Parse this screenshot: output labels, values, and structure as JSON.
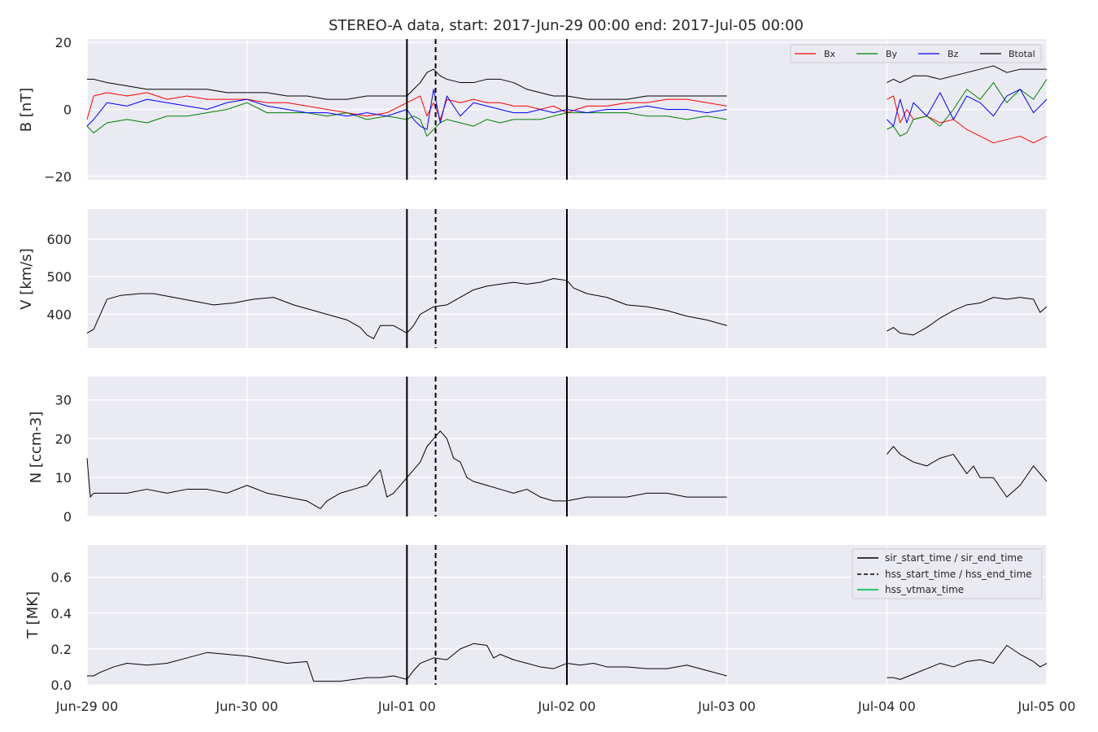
{
  "title": "STEREO-A data, start: 2017-Jun-29 00:00  end: 2017-Jul-05 00:00",
  "x_ticks": [
    "Jun-29 00",
    "Jun-30 00",
    "Jul-01 00",
    "Jul-02 00",
    "Jul-03 00",
    "Jul-04 00",
    "Jul-05 00"
  ],
  "colors": {
    "panel_bg": "#EAEAF2",
    "grid": "#FFFFFF",
    "Bx": "#FF0000",
    "By": "#008000",
    "Bz": "#0000FF",
    "Btotal": "#000000",
    "hss_vtmax": "#2ECC71"
  },
  "legend_b": [
    "Bx",
    "By",
    "Bz",
    "Btotal"
  ],
  "legend_events": [
    "sir_start_time / sir_end_time",
    "hss_start_time / hss_end_time",
    "hss_vtmax_time"
  ],
  "chart_data": {
    "type": "line",
    "title": "STEREO-A data, start: 2017-Jun-29 00:00  end: 2017-Jul-05 00:00",
    "x_unit": "hours since 2017-Jun-29 00:00",
    "x_range": [
      0,
      144
    ],
    "data_gap": [
      96,
      120
    ],
    "event_markers": {
      "sir_start_time": 48,
      "hss_start_time": 52.3,
      "sir_end_time": 72
    },
    "panels": [
      {
        "id": "B",
        "ylabel": "B [nT]",
        "ylim": [
          -21,
          21
        ],
        "yticks": [
          -20,
          0,
          20
        ],
        "ytick_labels": [
          "−20",
          "0",
          "20"
        ],
        "legend": "top-right",
        "series": [
          {
            "name": "Bx",
            "color": "#FF0000",
            "x": [
              0,
              1,
              3,
              6,
              9,
              12,
              15,
              18,
              21,
              24,
              27,
              30,
              33,
              36,
              39,
              42,
              45,
              48,
              49,
              50,
              51,
              52,
              53,
              54,
              56,
              58,
              60,
              62,
              64,
              66,
              68,
              70,
              72,
              75,
              78,
              81,
              84,
              87,
              90,
              93,
              96,
              120,
              121,
              122,
              123,
              124,
              126,
              128,
              130,
              132,
              134,
              136,
              138,
              140,
              142,
              144
            ],
            "y": [
              -3,
              4,
              5,
              4,
              5,
              3,
              4,
              3,
              3,
              3,
              2,
              2,
              1,
              0,
              -1,
              -2,
              -1,
              2,
              3,
              4,
              -2,
              2,
              -3,
              3,
              2,
              3,
              2,
              2,
              1,
              1,
              0,
              1,
              -1,
              1,
              1,
              2,
              2,
              3,
              3,
              2,
              1,
              3,
              4,
              -4,
              0,
              -3,
              -2,
              -4,
              -3,
              -6,
              -8,
              -10,
              -9,
              -8,
              -10,
              -8
            ]
          },
          {
            "name": "By",
            "color": "#008000",
            "x": [
              0,
              1,
              3,
              6,
              9,
              12,
              15,
              18,
              21,
              24,
              27,
              30,
              33,
              36,
              39,
              42,
              45,
              48,
              49,
              50,
              51,
              52,
              53,
              54,
              56,
              58,
              60,
              62,
              64,
              66,
              68,
              70,
              72,
              75,
              78,
              81,
              84,
              87,
              90,
              93,
              96,
              120,
              121,
              122,
              123,
              124,
              126,
              128,
              130,
              132,
              134,
              136,
              138,
              140,
              142,
              144
            ],
            "y": [
              -5,
              -7,
              -4,
              -3,
              -4,
              -2,
              -2,
              -1,
              0,
              2,
              -1,
              -1,
              -1,
              -2,
              -1,
              -3,
              -2,
              -3,
              -2,
              -3,
              -8,
              -6,
              -4,
              -3,
              -4,
              -5,
              -3,
              -4,
              -3,
              -3,
              -3,
              -2,
              -1,
              -1,
              -1,
              -1,
              -2,
              -2,
              -3,
              -2,
              -3,
              -6,
              -5,
              -8,
              -7,
              -3,
              -2,
              -5,
              0,
              6,
              3,
              8,
              2,
              6,
              3,
              9
            ]
          },
          {
            "name": "Bz",
            "color": "#0000FF",
            "x": [
              0,
              1,
              3,
              6,
              9,
              12,
              15,
              18,
              21,
              24,
              27,
              30,
              33,
              36,
              39,
              42,
              45,
              48,
              49,
              50,
              51,
              52,
              53,
              54,
              56,
              58,
              60,
              62,
              64,
              66,
              68,
              70,
              72,
              75,
              78,
              81,
              84,
              87,
              90,
              93,
              96,
              120,
              121,
              122,
              123,
              124,
              126,
              128,
              130,
              132,
              134,
              136,
              138,
              140,
              142,
              144
            ],
            "y": [
              -5,
              -3,
              2,
              1,
              3,
              2,
              1,
              0,
              2,
              3,
              1,
              0,
              -1,
              -1,
              -2,
              -1,
              -2,
              0,
              -3,
              -5,
              -6,
              6,
              -4,
              4,
              -2,
              2,
              1,
              0,
              -1,
              -1,
              0,
              -1,
              0,
              -1,
              0,
              0,
              1,
              0,
              0,
              -1,
              0,
              -3,
              -5,
              3,
              -4,
              2,
              -2,
              5,
              -3,
              4,
              2,
              -2,
              4,
              6,
              -1,
              3
            ]
          },
          {
            "name": "Btotal",
            "color": "#000000",
            "x": [
              0,
              1,
              3,
              6,
              9,
              12,
              15,
              18,
              21,
              24,
              27,
              30,
              33,
              36,
              39,
              42,
              45,
              48,
              49,
              50,
              51,
              52,
              53,
              54,
              56,
              58,
              60,
              62,
              64,
              66,
              68,
              70,
              72,
              75,
              78,
              81,
              84,
              87,
              90,
              93,
              96,
              120,
              121,
              122,
              123,
              124,
              126,
              128,
              130,
              132,
              134,
              136,
              138,
              140,
              142,
              144
            ],
            "y": [
              9,
              9,
              8,
              7,
              6,
              6,
              6,
              6,
              5,
              5,
              5,
              4,
              4,
              3,
              3,
              4,
              4,
              4,
              6,
              8,
              11,
              12,
              10,
              9,
              8,
              8,
              9,
              9,
              8,
              6,
              5,
              4,
              4,
              3,
              3,
              3,
              4,
              4,
              4,
              4,
              4,
              8,
              9,
              8,
              9,
              10,
              10,
              9,
              10,
              11,
              12,
              13,
              11,
              12,
              12,
              12
            ]
          }
        ]
      },
      {
        "id": "V",
        "ylabel": "V [km/s]",
        "ylim": [
          310,
          680
        ],
        "yticks": [
          400,
          500,
          600
        ],
        "series": [
          {
            "name": "V",
            "color": "#000000",
            "x": [
              0,
              1,
              2,
              3,
              5,
              8,
              10,
              13,
              16,
              19,
              22,
              25,
              28,
              31,
              33,
              35,
              37,
              39,
              41,
              42,
              43,
              44,
              46,
              47,
              48,
              49,
              50,
              52,
              54,
              56,
              58,
              60,
              62,
              64,
              66,
              68,
              70,
              72,
              73,
              75,
              78,
              81,
              84,
              87,
              90,
              93,
              96,
              120,
              121,
              122,
              124,
              126,
              128,
              130,
              132,
              134,
              136,
              138,
              140,
              142,
              143,
              144
            ],
            "y": [
              350,
              360,
              400,
              440,
              450,
              455,
              455,
              445,
              435,
              425,
              430,
              440,
              445,
              425,
              415,
              405,
              395,
              385,
              365,
              345,
              335,
              370,
              370,
              360,
              350,
              370,
              400,
              420,
              425,
              445,
              465,
              475,
              480,
              485,
              480,
              485,
              495,
              490,
              470,
              455,
              445,
              425,
              420,
              410,
              395,
              385,
              370,
              355,
              365,
              350,
              345,
              365,
              390,
              410,
              425,
              430,
              445,
              440,
              445,
              440,
              405,
              420
            ]
          }
        ]
      },
      {
        "id": "N",
        "ylabel": "N [ccm-3]",
        "ylim": [
          0,
          36
        ],
        "yticks": [
          0,
          10,
          20,
          30
        ],
        "series": [
          {
            "name": "N",
            "color": "#000000",
            "x": [
              0,
              0.5,
              1,
              3,
              6,
              9,
              12,
              15,
              18,
              21,
              24,
              27,
              30,
              33,
              34,
              35,
              36,
              38,
              40,
              42,
              43,
              44,
              45,
              46,
              47,
              48,
              49,
              50,
              51,
              52,
              53,
              54,
              55,
              56,
              57,
              58,
              60,
              62,
              64,
              66,
              68,
              70,
              72,
              75,
              78,
              81,
              84,
              87,
              90,
              93,
              96,
              120,
              121,
              122,
              124,
              126,
              128,
              130,
              132,
              133,
              134,
              136,
              138,
              140,
              142,
              144
            ],
            "y": [
              15,
              5,
              6,
              6,
              6,
              7,
              6,
              7,
              7,
              6,
              8,
              6,
              5,
              4,
              3,
              2,
              4,
              6,
              7,
              8,
              10,
              12,
              5,
              6,
              8,
              10,
              12,
              14,
              18,
              20,
              22,
              20,
              15,
              14,
              10,
              9,
              8,
              7,
              6,
              7,
              5,
              4,
              4,
              5,
              5,
              5,
              6,
              6,
              5,
              5,
              5,
              16,
              18,
              16,
              14,
              13,
              15,
              16,
              11,
              13,
              10,
              10,
              5,
              8,
              13,
              9
            ]
          }
        ]
      },
      {
        "id": "T",
        "ylabel": "T [MK]",
        "ylim": [
          0,
          0.78
        ],
        "yticks": [
          0.0,
          0.2,
          0.4,
          0.6
        ],
        "ytick_labels": [
          "0.0",
          "0.2",
          "0.4",
          "0.6"
        ],
        "legend": "top-right",
        "series": [
          {
            "name": "T",
            "color": "#000000",
            "x": [
              0,
              1,
              2,
              4,
              6,
              9,
              12,
              15,
              18,
              21,
              24,
              27,
              30,
              33,
              34,
              36,
              38,
              40,
              42,
              44,
              46,
              47,
              48,
              49,
              50,
              52,
              54,
              56,
              58,
              60,
              61,
              62,
              64,
              66,
              68,
              70,
              72,
              74,
              76,
              78,
              81,
              84,
              87,
              90,
              93,
              96,
              120,
              121,
              122,
              124,
              126,
              128,
              130,
              132,
              134,
              136,
              138,
              140,
              142,
              143,
              144
            ],
            "y": [
              0.05,
              0.05,
              0.07,
              0.1,
              0.12,
              0.11,
              0.12,
              0.15,
              0.18,
              0.17,
              0.16,
              0.14,
              0.12,
              0.13,
              0.02,
              0.02,
              0.02,
              0.03,
              0.04,
              0.04,
              0.05,
              0.04,
              0.03,
              0.08,
              0.12,
              0.15,
              0.14,
              0.2,
              0.23,
              0.22,
              0.15,
              0.17,
              0.14,
              0.12,
              0.1,
              0.09,
              0.12,
              0.11,
              0.12,
              0.1,
              0.1,
              0.09,
              0.09,
              0.11,
              0.08,
              0.05,
              0.04,
              0.04,
              0.03,
              0.06,
              0.09,
              0.12,
              0.1,
              0.13,
              0.14,
              0.12,
              0.22,
              0.17,
              0.13,
              0.1,
              0.12
            ]
          }
        ]
      }
    ]
  }
}
